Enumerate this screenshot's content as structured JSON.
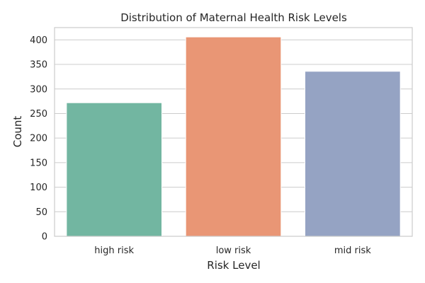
{
  "chart_data": {
    "type": "bar",
    "title": "Distribution of Maternal Health Risk Levels",
    "xlabel": "Risk Level",
    "ylabel": "Count",
    "categories": [
      "high risk",
      "low risk",
      "mid risk"
    ],
    "values": [
      272,
      406,
      336
    ],
    "colors": [
      "#72b6a1",
      "#e99675",
      "#95a3c3"
    ],
    "ylim": [
      0,
      425
    ],
    "yticks": [
      0,
      50,
      100,
      150,
      200,
      250,
      300,
      350,
      400
    ],
    "grid": true,
    "legend": "none"
  }
}
